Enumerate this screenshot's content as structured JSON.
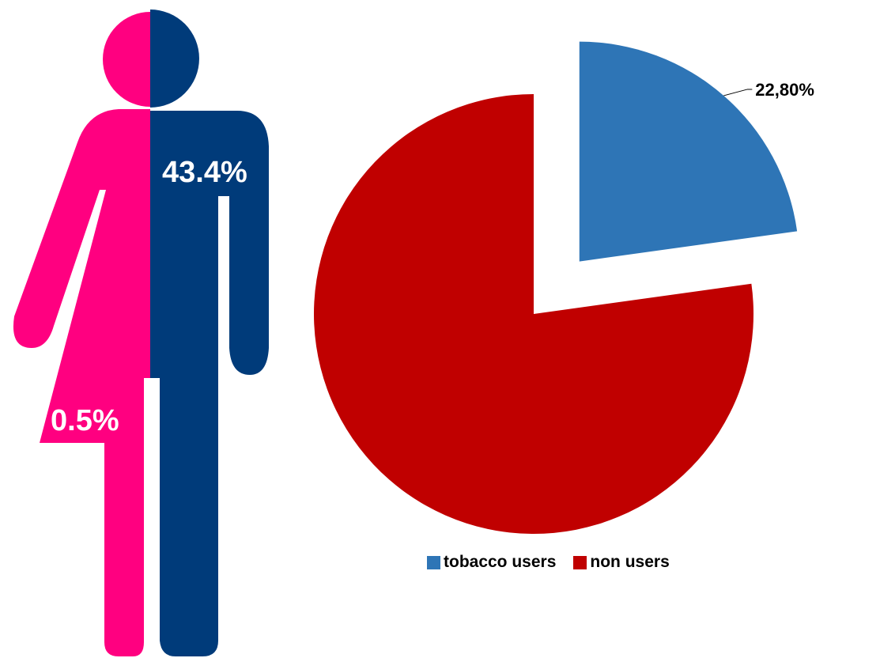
{
  "colors": {
    "female": "#ff0080",
    "male": "#003b7a",
    "tobacco": "#2e75b6",
    "non_users": "#c00000"
  },
  "figure": {
    "male_label": "43.4%",
    "female_label": "0.5%"
  },
  "chart_data": {
    "type": "pie",
    "slices": [
      {
        "name": "tobacco users",
        "value": 22.8,
        "label": "22,80%",
        "color": "#2e75b6",
        "exploded": true
      },
      {
        "name": "non users",
        "value": 77.2,
        "label": "",
        "color": "#c00000",
        "exploded": false
      }
    ],
    "legend": {
      "position": "bottom",
      "entries": [
        "tobacco users",
        "non users"
      ]
    }
  }
}
